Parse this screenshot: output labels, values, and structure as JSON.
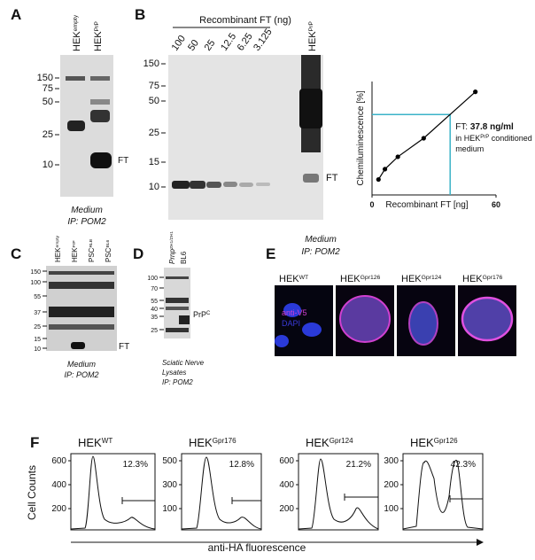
{
  "panel_labels": [
    "A",
    "B",
    "C",
    "D",
    "E",
    "F"
  ],
  "panel_a": {
    "lanes": [
      {
        "base": "HEK",
        "sup": "empty"
      },
      {
        "base": "HEK",
        "sup": "PrP"
      }
    ],
    "markers": [
      150,
      75,
      50,
      25,
      10
    ],
    "band_label": "FT",
    "caption": [
      "Medium",
      "IP: POM2"
    ]
  },
  "panel_b": {
    "heading": "Recombinant FT (ng)",
    "lanes": [
      100,
      50,
      25,
      12.5,
      6.25,
      3.125
    ],
    "ref_lane": {
      "base": "HEK",
      "sup": "PrP"
    },
    "markers": [
      150,
      75,
      50,
      25,
      15,
      10
    ],
    "band_label": "FT",
    "caption": [
      "Medium",
      "IP: POM2"
    ]
  },
  "panel_b_chart": {
    "type": "line",
    "ylabel": "Chemiluminescence [%]",
    "xlabel": "Recombinant FT [ng]",
    "x": [
      3.125,
      6.25,
      12.5,
      25,
      50
    ],
    "values": [
      15,
      25,
      37,
      55,
      100
    ],
    "xlim": [
      0,
      60
    ],
    "ylim": [
      0,
      110
    ],
    "xticks": [
      0,
      60
    ],
    "color": "#000000",
    "readout": {
      "x": 37.8,
      "y": 78,
      "color": "#3bb3c8"
    },
    "annotation": {
      "prefix": "FT: ",
      "value": "37.8 ng/ml",
      "line2_prefix": "in HEK",
      "line2_sup": "PrP",
      "line2_suffix": " conditioned",
      "line3": "medium"
    }
  },
  "panel_c": {
    "lanes": [
      {
        "base": "HEK",
        "sup": "empty"
      },
      {
        "base": "HEK",
        "sup": "PrP"
      },
      {
        "base": "PSC",
        "sup": "RLB"
      },
      {
        "base": "PSC",
        "sup": "BL6"
      }
    ],
    "markers": [
      150,
      100,
      55,
      37,
      25,
      15,
      10
    ],
    "band_label": "FT",
    "caption": [
      "Medium",
      "IP: POM2"
    ]
  },
  "panel_d": {
    "lanes": [
      {
        "base": "Prnp",
        "sup": "ZH1/ZH1"
      },
      {
        "base": "BL6",
        "sup": ""
      }
    ],
    "markers": [
      100,
      70,
      55,
      40,
      35,
      25
    ],
    "band_label": {
      "base": "PrP",
      "sup": "C"
    },
    "caption": [
      "Sciatic Nerve",
      "Lysates",
      "IP: POM2"
    ]
  },
  "panel_e": {
    "titles": [
      {
        "base": "HEK",
        "sup": "WT"
      },
      {
        "base": "HEK",
        "sup": "Gpr126"
      },
      {
        "base": "HEK",
        "sup": "Gpr124"
      },
      {
        "base": "HEK",
        "sup": "Gpr176"
      }
    ],
    "legend": [
      "anti-V5",
      "DAPI"
    ]
  },
  "panel_f": {
    "ylabel": "Cell Counts",
    "xlabel": "anti-HA fluorescence",
    "plots": [
      {
        "title": {
          "base": "HEK",
          "sup": "WT"
        },
        "yticks": [
          600,
          400,
          200
        ],
        "gate": "12.3%"
      },
      {
        "title": {
          "base": "HEK",
          "sup": "Gpr176"
        },
        "yticks": [
          500,
          300,
          100
        ],
        "gate": "12.8%"
      },
      {
        "title": {
          "base": "HEK",
          "sup": "Gpr124"
        },
        "yticks": [
          600,
          400,
          200
        ],
        "gate": "21.2%"
      },
      {
        "title": {
          "base": "HEK",
          "sup": "Gpr126"
        },
        "yticks": [
          300,
          200,
          100
        ],
        "gate": "42.3%"
      }
    ]
  }
}
